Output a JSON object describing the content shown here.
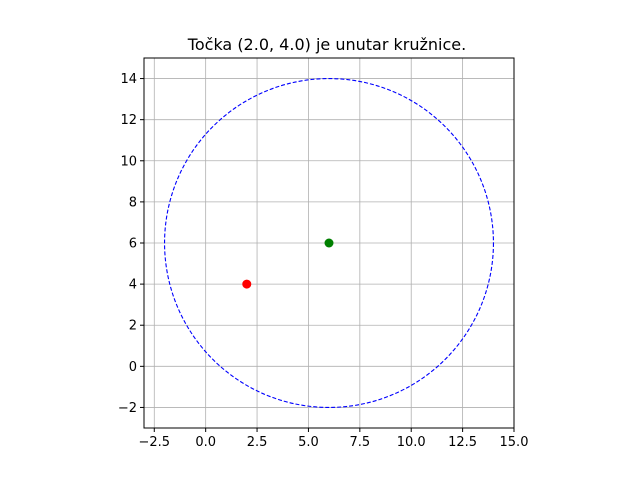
{
  "chart_data": {
    "type": "scatter",
    "title": "Točka (2.0, 4.0) je unutar kružnice.",
    "xlabel": "",
    "ylabel": "",
    "xlim": [
      -3,
      15
    ],
    "ylim": [
      -3,
      15
    ],
    "aspect": "equal",
    "grid": true,
    "x_ticks": [
      -2.5,
      0.0,
      2.5,
      5.0,
      7.5,
      10.0,
      12.5,
      15.0
    ],
    "x_tick_labels": [
      "−2.5",
      "0.0",
      "2.5",
      "5.0",
      "7.5",
      "10.0",
      "12.5",
      "15.0"
    ],
    "y_ticks": [
      -2,
      0,
      2,
      4,
      6,
      8,
      10,
      12,
      14
    ],
    "y_tick_labels": [
      "−2",
      "0",
      "2",
      "4",
      "6",
      "8",
      "10",
      "12",
      "14"
    ],
    "circle": {
      "center": [
        6,
        6
      ],
      "radius": 8,
      "color": "#0000ff",
      "style": "dashed"
    },
    "points": [
      {
        "x": 6,
        "y": 6,
        "color": "#008000"
      },
      {
        "x": 2,
        "y": 4,
        "color": "#ff0000"
      }
    ]
  }
}
